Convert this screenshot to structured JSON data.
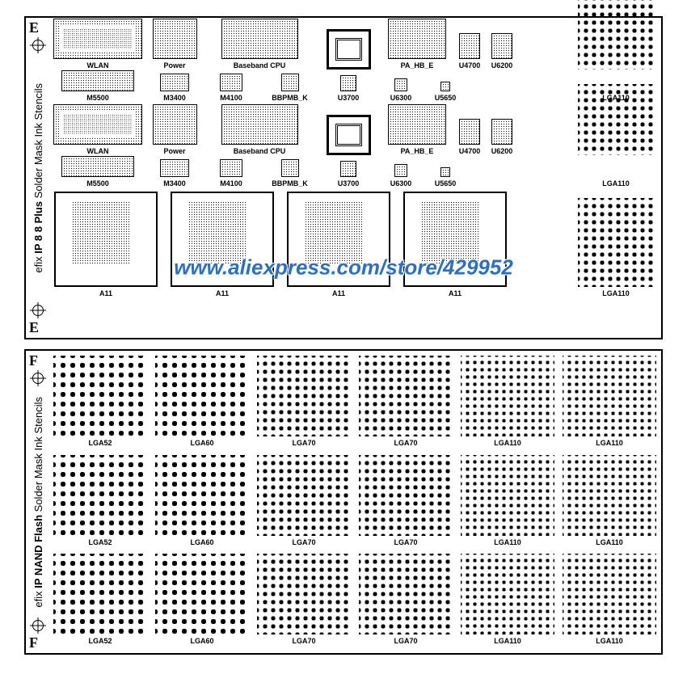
{
  "watermark": "www.aliexpress.com/store/429952",
  "sheetE": {
    "corner": "E",
    "side_brand": "efix ",
    "side_model": "IP 8 8 Plus ",
    "side_rest": "Solder Mask Ink Stencils",
    "row1a": [
      "WLAN",
      "Power",
      "Baseband CPU",
      "PA_HB_E",
      "U4700",
      "U6200"
    ],
    "row1b": [
      "M5500",
      "M3400",
      "M4100",
      "BBPMB_K",
      "U3700",
      "U6300",
      "U5650"
    ],
    "row2a": [
      "WLAN",
      "Power",
      "Baseband CPU",
      "PA_HB_E",
      "U4700",
      "U6200"
    ],
    "row2b": [
      "M5500",
      "M3400",
      "M4100",
      "BBPMB_K",
      "U3700",
      "U6300",
      "U5650"
    ],
    "lga": "LGA110",
    "a11": "A11"
  },
  "sheetF": {
    "corner": "F",
    "side_brand": "efix ",
    "side_model": "IP NAND Flash ",
    "side_rest": "Solder Mask Ink Stencils",
    "labels": [
      "LGA52",
      "LGA60",
      "LGA70",
      "LGA70",
      "LGA110",
      "LGA110",
      "LGA52",
      "LGA60",
      "LGA70",
      "LGA70",
      "LGA110",
      "LGA110",
      "LGA52",
      "LGA60",
      "LGA70",
      "LGA70",
      "LGA110",
      "LGA110"
    ]
  },
  "colors": {
    "border": "#000000",
    "bg": "#ffffff",
    "watermark": "#2a6fc9"
  }
}
